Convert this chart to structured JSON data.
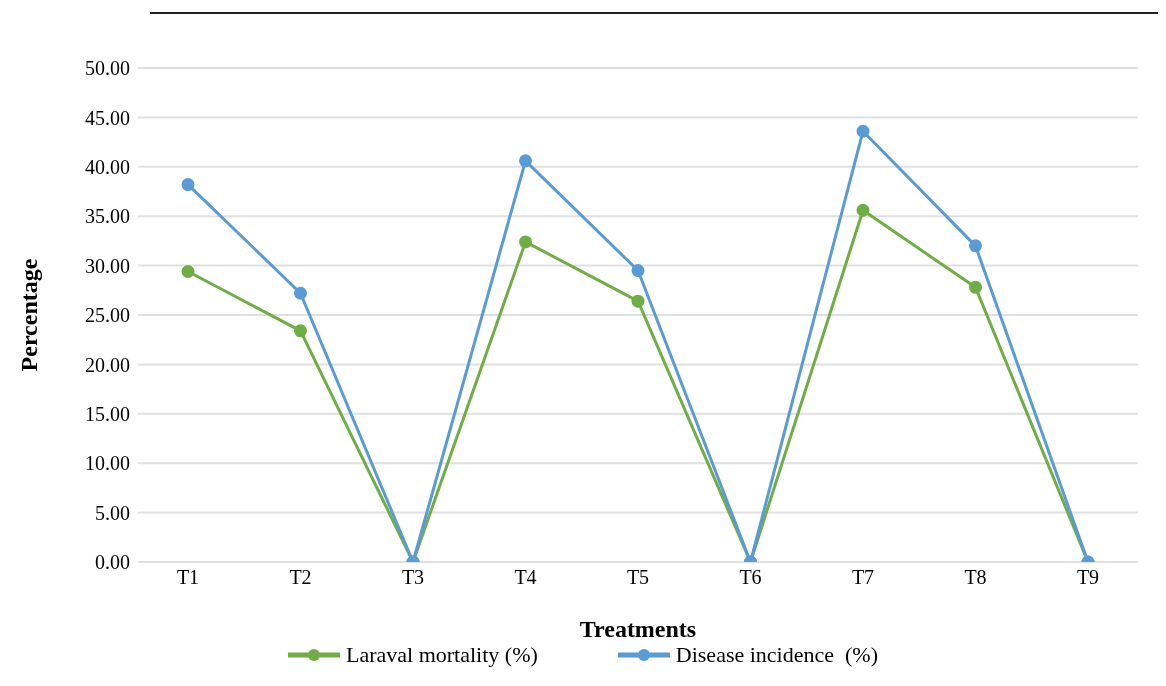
{
  "chart_data": {
    "type": "line",
    "xlabel": "Treatments",
    "ylabel": "Percentage",
    "categories": [
      "T1",
      "T2",
      "T3",
      "T4",
      "T5",
      "T6",
      "T7",
      "T8",
      "T9"
    ],
    "series": [
      {
        "name": "Laraval mortality (%)",
        "color": "#70ad47",
        "values": [
          29.4,
          23.4,
          0,
          32.4,
          26.4,
          0,
          35.6,
          27.8,
          0
        ]
      },
      {
        "name": "Disease incidence  (%)",
        "color": "#5b9bd5",
        "values": [
          38.2,
          27.2,
          0,
          40.6,
          29.5,
          0,
          43.6,
          32.0,
          0
        ]
      }
    ],
    "ylim": [
      0,
      50
    ],
    "yticks": [
      {
        "value": 0,
        "label": "0.00"
      },
      {
        "value": 5,
        "label": "5.00"
      },
      {
        "value": 10,
        "label": "10.00"
      },
      {
        "value": 15,
        "label": "15.00"
      },
      {
        "value": 20,
        "label": "20.00"
      },
      {
        "value": 25,
        "label": "25.00"
      },
      {
        "value": 30,
        "label": "30.00"
      },
      {
        "value": 35,
        "label": "35.00"
      },
      {
        "value": 40,
        "label": "40.00"
      },
      {
        "value": 45,
        "label": "45.00"
      },
      {
        "value": 50,
        "label": "50.00"
      }
    ],
    "grid": "y",
    "legend": "bottom",
    "marker": "circle",
    "line_style": "solid"
  }
}
